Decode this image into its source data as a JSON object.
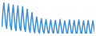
{
  "chart_data": {
    "type": "line",
    "color": "#3a8fd6",
    "tick_labels": false,
    "x": [
      1,
      2,
      3,
      4,
      5,
      6,
      7,
      8,
      9,
      10,
      11,
      12,
      13,
      14,
      15,
      16,
      17,
      18,
      19,
      20,
      21,
      22,
      23,
      24,
      25,
      26,
      27,
      28,
      29,
      30,
      31,
      32,
      33,
      34,
      35,
      36,
      37,
      38,
      39,
      40,
      41,
      42,
      43,
      44,
      45,
      46,
      47,
      48,
      49,
      50,
      51,
      52,
      53,
      54,
      55,
      56,
      57,
      58,
      59,
      60,
      61,
      62,
      63,
      64,
      65,
      66,
      67,
      68,
      69,
      70,
      71,
      72,
      73,
      74,
      75,
      76,
      77,
      78,
      79,
      80,
      81,
      82,
      83,
      84,
      85,
      86,
      87,
      88,
      89,
      90,
      91,
      92,
      93,
      94,
      95,
      96,
      97,
      98,
      99,
      100
    ],
    "values": [
      40,
      75,
      95,
      70,
      45,
      35,
      72,
      92,
      65,
      40,
      32,
      70,
      90,
      62,
      38,
      30,
      68,
      88,
      60,
      36,
      30,
      66,
      86,
      58,
      35,
      28,
      60,
      80,
      55,
      33,
      26,
      55,
      72,
      50,
      30,
      25,
      48,
      62,
      45,
      28,
      24,
      45,
      58,
      42,
      27,
      24,
      44,
      56,
      40,
      26,
      23,
      42,
      55,
      40,
      26,
      24,
      43,
      54,
      39,
      25,
      23,
      42,
      56,
      40,
      26,
      22,
      41,
      53,
      38,
      25,
      23,
      42,
      55,
      39,
      25,
      23,
      41,
      54,
      38,
      24,
      22,
      42,
      55,
      40,
      25,
      23,
      41,
      53,
      38,
      24,
      22,
      42,
      54,
      39,
      25,
      23,
      41,
      53,
      38,
      24
    ],
    "xlim": [
      1,
      100
    ],
    "ylim": [
      22,
      95
    ]
  }
}
